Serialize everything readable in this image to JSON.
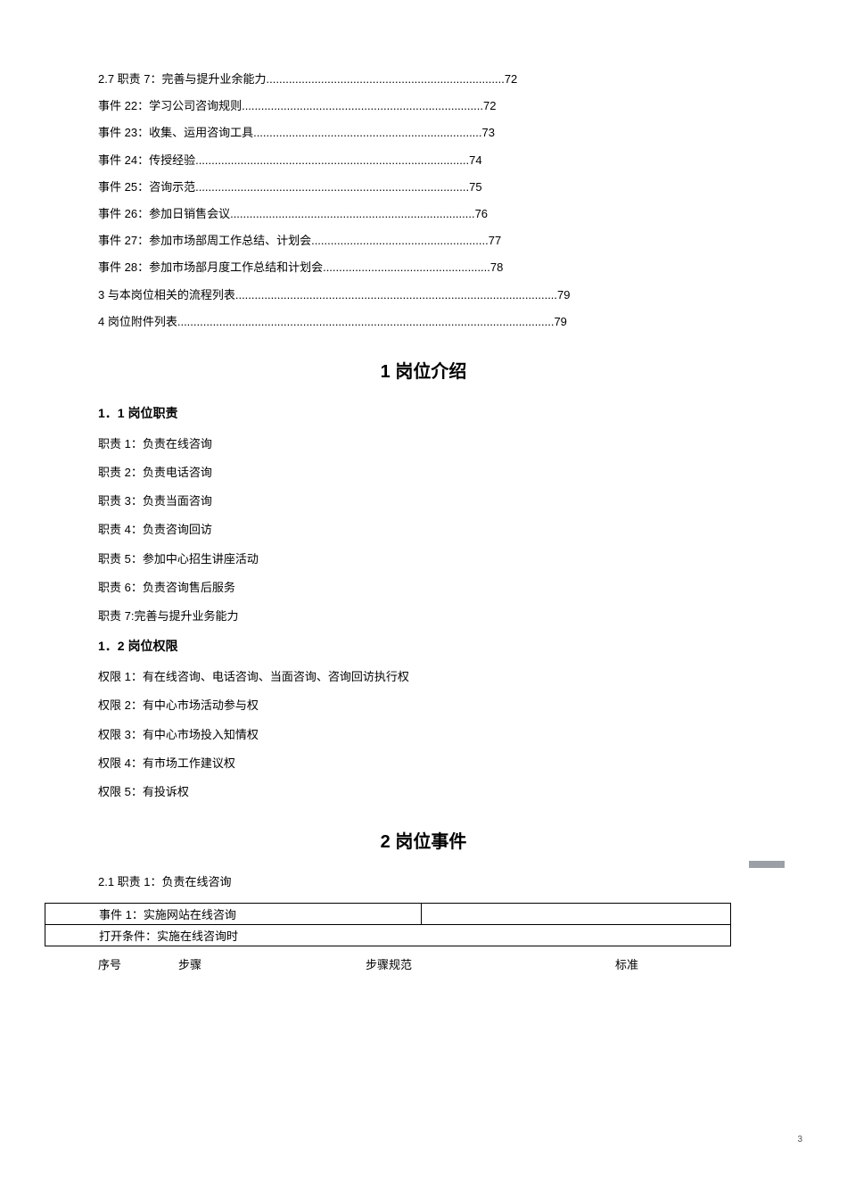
{
  "toc": [
    {
      "label": "2.7 职责 7：完善与提升业余能力",
      "dots": "..........................................................................",
      "page": "72"
    },
    {
      "label": "事件 22：学习公司咨询规则",
      "dots": "...........................................................................",
      "page": "72"
    },
    {
      "label": "事件 23：收集、运用咨询工具",
      "dots": ".......................................................................",
      "page": "73"
    },
    {
      "label": "事件 24：传授经验",
      "dots": ".....................................................................................",
      "page": "74"
    },
    {
      "label": "事件 25：咨询示范",
      "dots": ".....................................................................................",
      "page": "75"
    },
    {
      "label": "事件 26：参加日销售会议",
      "dots": "............................................................................",
      "page": "76"
    },
    {
      "label": "事件 27：参加市场部周工作总结、计划会",
      "dots": ".......................................................",
      "page": "77"
    },
    {
      "label": "事件 28：参加市场部月度工作总结和计划会",
      "dots": "....................................................",
      "page": "78"
    },
    {
      "label": "3 与本岗位相关的流程列表",
      "dots": "....................................................................................................",
      "page": "79"
    },
    {
      "label": "4 岗位附件列表",
      "dots": ".....................................................................................................................",
      "page": "79"
    }
  ],
  "section1": {
    "title": "1 岗位介绍",
    "sub1": {
      "title": "1．1 岗位职责",
      "items": [
        "职责 1：负责在线咨询",
        "职责 2：负责电话咨询",
        "职责 3：负责当面咨询",
        "职责 4：负责咨询回访",
        "职责 5：参加中心招生讲座活动",
        "职责 6：负责咨询售后服务",
        "职责 7:完善与提升业务能力"
      ]
    },
    "sub2": {
      "title": "1．2 岗位权限",
      "items": [
        "权限 1：有在线咨询、电话咨询、当面咨询、咨询回访执行权",
        "权限 2：有中心市场活动参与权",
        "权限 3：有中心市场投入知情权",
        "权限 4：有市场工作建议权",
        "权限 5：有投诉权"
      ]
    }
  },
  "section2": {
    "title": "2 岗位事件",
    "sub": "2.1 职责 1：负责在线咨询",
    "event_row1": "事件 1：实施网站在线咨询",
    "event_row2": "打开条件：实施在线咨询时",
    "headers": {
      "c1": "序号",
      "c2": "步骤",
      "c3": "步骤规范",
      "c4": "标准"
    }
  },
  "page_number": "3"
}
